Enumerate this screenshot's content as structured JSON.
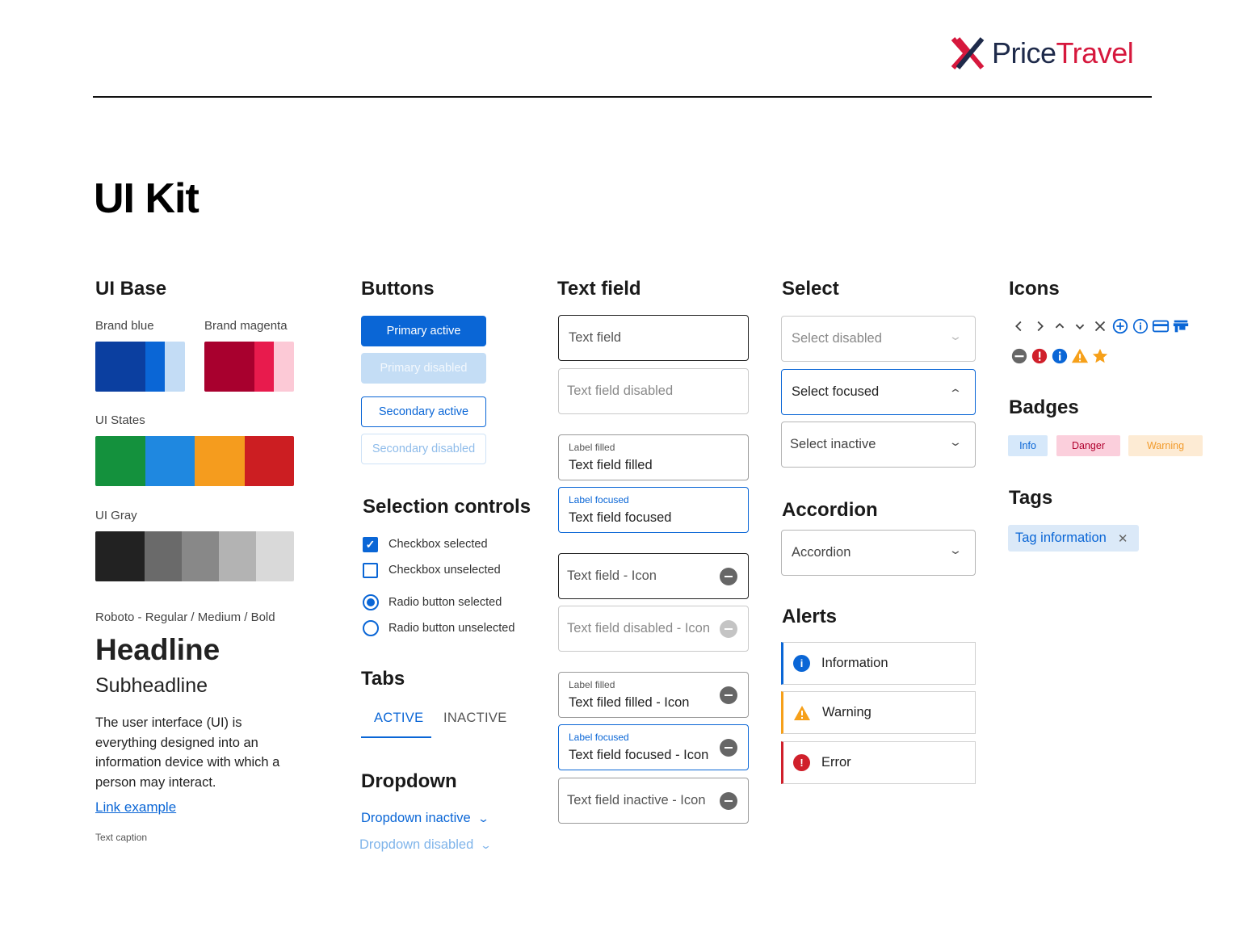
{
  "brand": {
    "name_part1": "Price",
    "name_part2": "Travel"
  },
  "page_title": "UI Kit",
  "ui_base": {
    "title": "UI Base",
    "brand_blue_label": "Brand blue",
    "brand_magenta_label": "Brand magenta",
    "brand_blue_colors": [
      "#0b3fa0",
      "#0a66d6",
      "#c3dcf5"
    ],
    "brand_magenta_colors": [
      "#a8002e",
      "#e81b4d",
      "#fcc9d6"
    ],
    "ui_states_label": "UI States",
    "ui_states_colors": [
      "#14913d",
      "#1f88e0",
      "#f59c1e",
      "#cc1e22"
    ],
    "ui_gray_label": "UI Gray",
    "ui_gray_colors": [
      "#222222",
      "#6a6a6a",
      "#888888",
      "#b3b3b3",
      "#d9d9d9"
    ],
    "font_label": "Roboto - Regular / Medium / Bold",
    "headline": "Headline",
    "subheadline": "Subheadline",
    "body": "The user interface (UI) is everything designed into an information device with which a person may interact.",
    "link": "Link example",
    "caption": "Text caption"
  },
  "buttons": {
    "title": "Buttons",
    "primary_active": "Primary active",
    "primary_disabled": "Primary disabled",
    "secondary_active": "Secondary active",
    "secondary_disabled": "Secondary disabled"
  },
  "selection_controls": {
    "title": "Selection controls",
    "checkbox_selected": "Checkbox selected",
    "checkbox_unselected": "Checkbox unselected",
    "radio_selected": "Radio button selected",
    "radio_unselected": "Radio button unselected"
  },
  "tabs": {
    "title": "Tabs",
    "active": "ACTIVE",
    "inactive": "INACTIVE"
  },
  "dropdown": {
    "title": "Dropdown",
    "inactive": "Dropdown inactive",
    "disabled": "Dropdown disabled"
  },
  "text_field": {
    "title": "Text field",
    "field": "Text field",
    "disabled": "Text field disabled",
    "label_filled": "Label filled",
    "filled": "Text field filled",
    "label_focused": "Label focused",
    "focused": "Text field focused",
    "icon": "Text field - Icon",
    "disabled_icon": "Text field disabled - Icon",
    "label_filled_2": "Label filled",
    "filled_icon": "Text filed filled  - Icon",
    "label_focused_2": "Label focused",
    "focused_icon": "Text field focused - Icon",
    "inactive_icon": "Text field inactive - Icon"
  },
  "select": {
    "title": "Select",
    "disabled": "Select disabled",
    "focused": "Select focused",
    "inactive": "Select inactive"
  },
  "accordion": {
    "title": "Accordion",
    "label": "Accordion"
  },
  "alerts": {
    "title": "Alerts",
    "information": "Information",
    "warning": "Warning",
    "error": "Error"
  },
  "icons": {
    "title": "Icons",
    "row1": [
      "chevron-left-icon",
      "chevron-right-icon",
      "chevron-up-icon",
      "chevron-down-icon",
      "close-icon",
      "add-circle-icon",
      "info-outline-icon",
      "credit-card-icon",
      "store-icon"
    ],
    "row2": [
      "remove-circle-icon",
      "error-icon",
      "info-icon",
      "warning-icon",
      "star-icon"
    ]
  },
  "badges": {
    "title": "Badges",
    "info": "Info",
    "danger": "Danger",
    "warning": "Warning"
  },
  "tags": {
    "title": "Tags",
    "tag_label": "Tag information"
  }
}
